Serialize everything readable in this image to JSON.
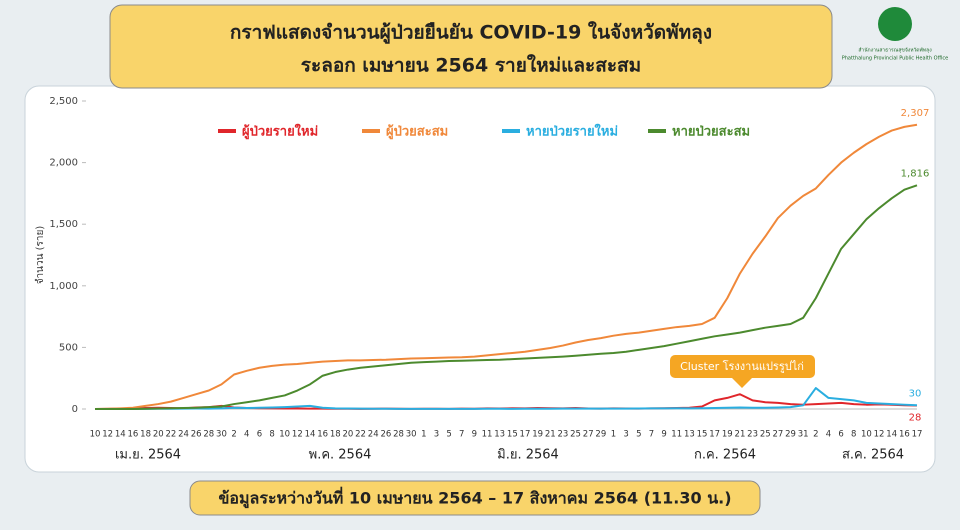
{
  "chart_data": {
    "type": "line",
    "title": "กราฟแสดงจำนวนผู้ป่วยยืนยัน COVID-19 ในจังหวัดพัทลุง",
    "subtitle": "ระลอก เมษายน 2564 รายใหม่และสะสม",
    "footer": "ข้อมูลระหว่างวันที่ 10 เมษายน 2564 – 17 สิงหาคม 2564 (11.30 น.)",
    "logo_text": "สำนักงานสาธารณสุขจังหวัดพัทลุง",
    "logo_subtext": "Phatthalung Provincial Public Health Office",
    "y_label": "จำนวน (ราย)",
    "annotation": "Cluster โรงงานแปรรูปไก่",
    "months": [
      "เม.ย. 2564",
      "พ.ค. 2564",
      "มิ.ย. 2564",
      "ก.ค. 2564",
      "ส.ค. 2564"
    ],
    "categories": [
      "10",
      "12",
      "14",
      "16",
      "18",
      "20",
      "22",
      "24",
      "26",
      "28",
      "30",
      "2",
      "4",
      "6",
      "8",
      "10",
      "12",
      "14",
      "16",
      "18",
      "20",
      "22",
      "24",
      "26",
      "28",
      "30",
      "1",
      "3",
      "5",
      "7",
      "9",
      "11",
      "13",
      "15",
      "17",
      "19",
      "21",
      "23",
      "25",
      "27",
      "29",
      "1",
      "3",
      "5",
      "7",
      "9",
      "11",
      "13",
      "15",
      "17",
      "19",
      "21",
      "23",
      "25",
      "27",
      "29",
      "31",
      "2",
      "4",
      "6",
      "8",
      "10",
      "12",
      "14",
      "16",
      "17"
    ],
    "ylim": [
      0,
      2500
    ],
    "yticks": [
      0,
      500,
      {
        "value": 1000,
        "label": "1,000"
      },
      {
        "value": 1500,
        "label": "1,500"
      },
      {
        "value": 2000,
        "label": "2,000"
      },
      {
        "value": 2500,
        "label": "2,500"
      }
    ],
    "grid": false,
    "series": [
      {
        "name": "ผู้ป่วยรายใหม่",
        "color": "#e0262b",
        "values": [
          0,
          1,
          3,
          5,
          8,
          10,
          8,
          5,
          12,
          15,
          25,
          12,
          8,
          6,
          5,
          4,
          4,
          3,
          3,
          2,
          2,
          1,
          2,
          3,
          2,
          1,
          2,
          2,
          1,
          3,
          2,
          5,
          4,
          6,
          5,
          8,
          6,
          5,
          8,
          4,
          3,
          5,
          4,
          3,
          5,
          6,
          8,
          10,
          20,
          70,
          90,
          120,
          70,
          55,
          50,
          40,
          35,
          40,
          45,
          50,
          40,
          35,
          38,
          35,
          30,
          28
        ]
      },
      {
        "name": "ผู้ป่วยสะสม",
        "color": "#f0883a",
        "values": [
          0,
          2,
          5,
          10,
          25,
          40,
          60,
          90,
          120,
          150,
          200,
          280,
          310,
          335,
          350,
          360,
          365,
          375,
          385,
          390,
          395,
          395,
          398,
          400,
          405,
          410,
          412,
          415,
          418,
          420,
          425,
          435,
          445,
          455,
          465,
          480,
          495,
          515,
          540,
          560,
          575,
          595,
          610,
          620,
          635,
          650,
          665,
          675,
          690,
          740,
          900,
          1100,
          1260,
          1400,
          1550,
          1650,
          1730,
          1790,
          1900,
          2000,
          2080,
          2150,
          2210,
          2260,
          2290,
          2307
        ],
        "value_labels": [
          null,
          null,
          null,
          null,
          null,
          null,
          null,
          null,
          null,
          null,
          null,
          null,
          null,
          null,
          null,
          null,
          null,
          null,
          null,
          null,
          null,
          null,
          null,
          null,
          null,
          null,
          null,
          null,
          null,
          null,
          null,
          null,
          null,
          null,
          null,
          null,
          null,
          null,
          null,
          null,
          null,
          null,
          null,
          null,
          null,
          null,
          null,
          null,
          null,
          null,
          null,
          null,
          null,
          null,
          null,
          null,
          null,
          null,
          null,
          null,
          null,
          null,
          null,
          null,
          null,
          "2,307"
        ]
      },
      {
        "name": "หายป่วยรายใหม่",
        "color": "#2aaee0",
        "values": [
          0,
          0,
          0,
          0,
          1,
          2,
          2,
          3,
          4,
          3,
          5,
          10,
          8,
          10,
          12,
          15,
          20,
          25,
          10,
          5,
          4,
          3,
          2,
          2,
          1,
          1,
          1,
          1,
          1,
          1,
          1,
          2,
          2,
          1,
          2,
          2,
          2,
          3,
          3,
          3,
          3,
          3,
          3,
          4,
          5,
          5,
          6,
          5,
          6,
          8,
          10,
          12,
          10,
          10,
          12,
          15,
          30,
          170,
          90,
          80,
          70,
          50,
          45,
          40,
          35,
          30
        ]
      },
      {
        "name": "หายป่วยสะสม",
        "color": "#4c8a2e",
        "values": [
          0,
          0,
          0,
          0,
          2,
          4,
          6,
          8,
          10,
          15,
          20,
          40,
          55,
          70,
          90,
          110,
          150,
          200,
          270,
          300,
          320,
          335,
          345,
          355,
          365,
          375,
          380,
          385,
          390,
          392,
          395,
          398,
          400,
          405,
          410,
          415,
          420,
          425,
          432,
          440,
          448,
          455,
          465,
          480,
          495,
          510,
          530,
          550,
          570,
          590,
          605,
          620,
          640,
          660,
          675,
          690,
          740,
          900,
          1100,
          1300,
          1420,
          1540,
          1630,
          1710,
          1780,
          1816
        ],
        "value_labels": [
          null,
          null,
          null,
          null,
          null,
          null,
          null,
          null,
          null,
          null,
          null,
          null,
          null,
          null,
          null,
          null,
          null,
          null,
          null,
          null,
          null,
          null,
          null,
          null,
          null,
          null,
          null,
          null,
          null,
          null,
          null,
          null,
          null,
          null,
          null,
          null,
          null,
          null,
          null,
          null,
          null,
          null,
          null,
          null,
          null,
          null,
          null,
          null,
          null,
          null,
          null,
          null,
          null,
          null,
          null,
          null,
          null,
          null,
          null,
          null,
          null,
          null,
          null,
          null,
          null,
          "1,816"
        ]
      }
    ]
  }
}
